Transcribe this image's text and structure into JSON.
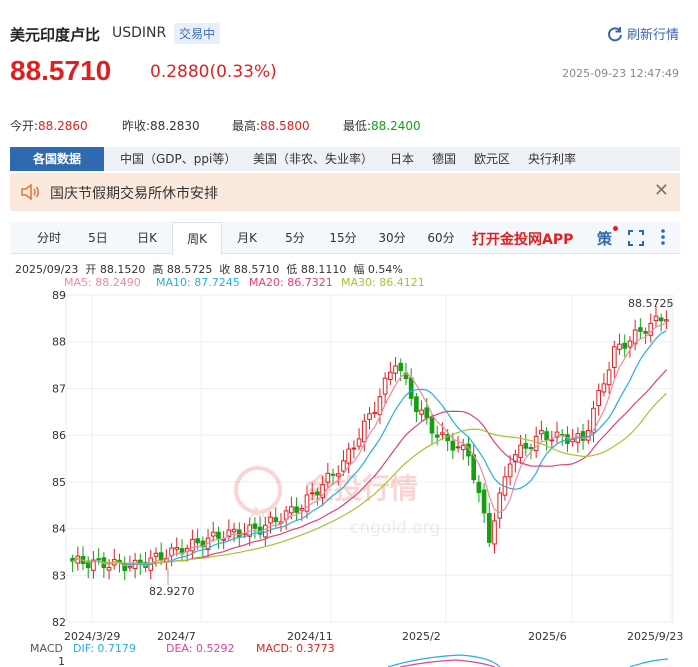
{
  "header": {
    "title": "美元印度卢比",
    "code": "USDINR",
    "status": "交易中",
    "refresh_label": "刷新行情",
    "price": "88.5710",
    "change": "0.2880(0.33%)",
    "timestamp": "2025-09-23 12:47:49"
  },
  "stats": {
    "open_label": "今开:",
    "open_value": "88.2860",
    "prev_label": "昨收:",
    "prev_value": "88.2830",
    "high_label": "最高:",
    "high_value": "88.5800",
    "low_label": "最低:",
    "low_value": "88.2400"
  },
  "data_tabs": [
    "各国数据",
    "中国（GDP、ppi等）",
    "美国（非农、失业率）",
    "日本",
    "德国",
    "欧元区",
    "央行利率"
  ],
  "notice": {
    "text": "国庆节假期交易所休市安排",
    "close": "✕"
  },
  "periods": [
    "分时",
    "5日",
    "日K",
    "周K",
    "月K",
    "5分",
    "15分",
    "30分",
    "60分"
  ],
  "active_period": "周K",
  "app_link": "打开金投网APP",
  "tool_glyph": "策",
  "ohlc": {
    "date": "2025/09/23",
    "open_label": "开",
    "open": "88.1520",
    "high_label": "高",
    "high": "88.5725",
    "close_label": "收",
    "close": "88.5710",
    "low_label": "低",
    "low": "88.1110",
    "amp_label": "幅",
    "amp": "0.54%"
  },
  "ma_legend": {
    "ma5": "MA5: 88.2490",
    "ma10": "MA10: 87.7245",
    "ma20": "MA20: 86.7321",
    "ma30": "MA30: 86.4121"
  },
  "chart_data": {
    "type": "candlestick",
    "y_ticks": [
      "89",
      "88",
      "87",
      "86",
      "85",
      "84",
      "83",
      "82"
    ],
    "x_ticks": [
      "2024/3/29",
      "2024/7",
      "2024/11",
      "2025/2",
      "2025/6",
      "2025/9/23"
    ],
    "max_label": "88.5725",
    "min_label": "82.9270",
    "ylim": [
      82,
      89
    ],
    "colors": {
      "up": "#e02020",
      "down": "#13a113",
      "ma5": "#f08aa0",
      "ma10": "#29aee0",
      "ma20": "#e0407a",
      "ma30": "#a8c232"
    }
  },
  "macd": {
    "label": "MACD",
    "dif": "DIF: 0.7179",
    "dea": "DEA: 0.5292",
    "macd": "MACD: 0.3773",
    "tick": "1"
  },
  "watermark": {
    "cn": "金投行情",
    "url": "cngold.org"
  }
}
